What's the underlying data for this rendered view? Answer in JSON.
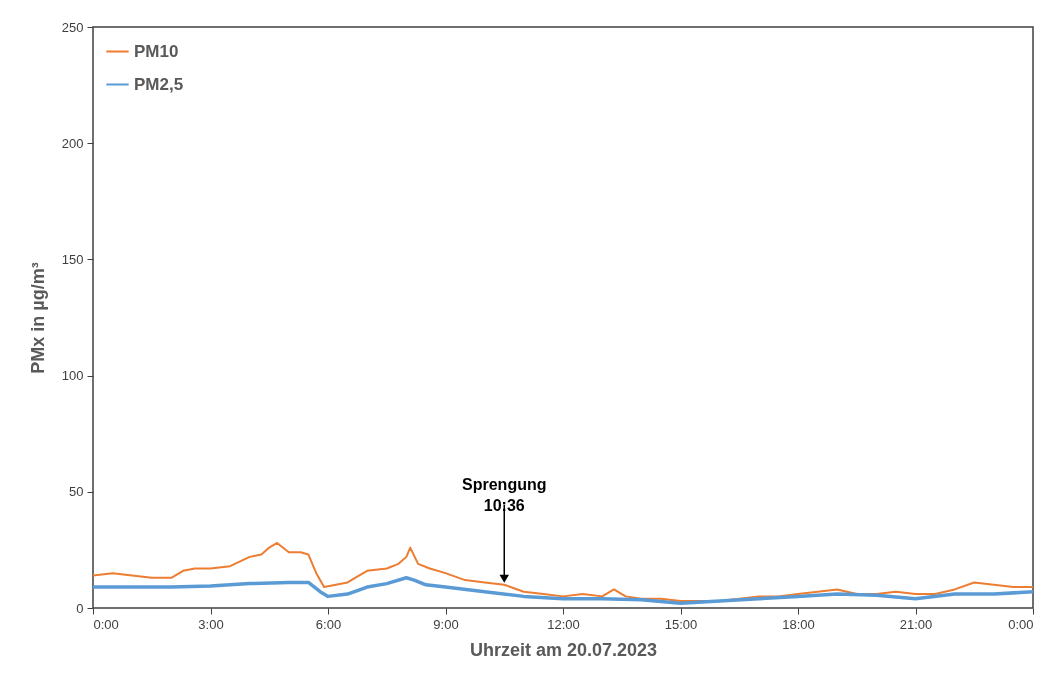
{
  "chart_data": {
    "type": "line",
    "xlabel": "Uhrzeit am 20.07.2023",
    "ylabel": "PMx in µg/m³",
    "xlim": [
      0,
      24
    ],
    "xticks": [
      {
        "value": 0,
        "label": "0:00"
      },
      {
        "value": 3,
        "label": "3:00"
      },
      {
        "value": 6,
        "label": "6:00"
      },
      {
        "value": 9,
        "label": "9:00"
      },
      {
        "value": 12,
        "label": "12:00"
      },
      {
        "value": 15,
        "label": "15:00"
      },
      {
        "value": 18,
        "label": "18:00"
      },
      {
        "value": 21,
        "label": "21:00"
      },
      {
        "value": 24,
        "label": "0:00"
      }
    ],
    "ylim": [
      0,
      250
    ],
    "yticks": [
      0,
      50,
      100,
      150,
      200,
      250
    ],
    "grid": false,
    "legend": "top left",
    "annotations": [
      {
        "text": "Sprengung\n10:36",
        "x": 10.5,
        "y": 10
      }
    ],
    "series": [
      {
        "name": "PM10",
        "color": "#ed7d31",
        "x": [
          0,
          0.5,
          1,
          1.5,
          2,
          2.3,
          2.6,
          3,
          3.5,
          4,
          4.3,
          4.5,
          4.7,
          5,
          5.3,
          5.5,
          5.7,
          5.9,
          6.2,
          6.5,
          6.8,
          7,
          7.5,
          7.8,
          8,
          8.1,
          8.3,
          8.6,
          9,
          9.5,
          10,
          10.5,
          11,
          11.5,
          12,
          12.5,
          13,
          13.3,
          13.6,
          14,
          14.5,
          15,
          15.5,
          16,
          16.5,
          17,
          17.5,
          18,
          18.5,
          19,
          19.5,
          20,
          20.5,
          21,
          21.5,
          22,
          22.5,
          23,
          23.5,
          24
        ],
        "values": [
          14,
          15,
          14,
          13,
          13,
          16,
          17,
          17,
          18,
          22,
          23,
          26,
          28,
          24,
          24,
          23,
          15,
          9,
          10,
          11,
          14,
          16,
          17,
          19,
          22,
          26,
          19,
          17,
          15,
          12,
          11,
          10,
          7,
          6,
          5,
          6,
          5,
          8,
          5,
          4,
          4,
          3,
          3,
          3,
          4,
          5,
          5,
          6,
          7,
          8,
          6,
          6,
          7,
          6,
          6,
          8,
          11,
          10,
          9,
          9
        ]
      },
      {
        "name": "PM2,5",
        "color": "#5b9bd5",
        "x": [
          0,
          1,
          2,
          3,
          4,
          5,
          5.5,
          5.8,
          6,
          6.5,
          7,
          7.5,
          8,
          8.2,
          8.5,
          9,
          10,
          11,
          12,
          13,
          14,
          15,
          16,
          17,
          18,
          19,
          20,
          21,
          22,
          23,
          24
        ],
        "values": [
          9,
          9,
          9,
          9.5,
          10.5,
          11,
          11,
          7,
          5,
          6,
          9,
          10.5,
          13,
          12,
          10,
          9,
          7,
          5,
          4,
          4,
          3.5,
          2,
          3,
          4,
          5,
          6,
          5.5,
          4,
          6,
          6,
          7
        ]
      }
    ]
  }
}
